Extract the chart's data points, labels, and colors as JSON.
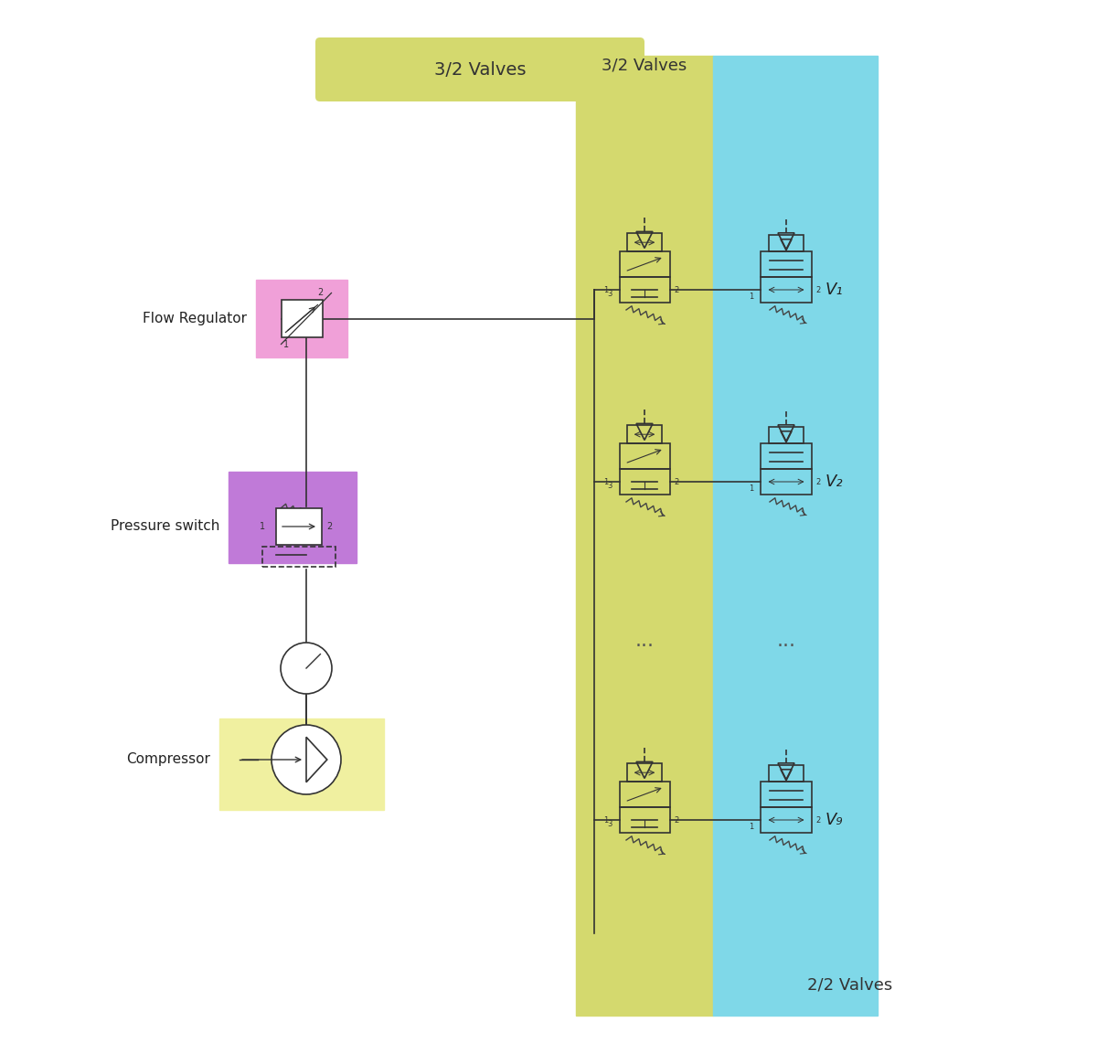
{
  "fig_width": 12.0,
  "fig_height": 11.41,
  "bg_color": "#ffffff",
  "yellow_band_color": "#d4d96e",
  "cyan_band_color": "#7fd8e8",
  "pink_color": "#f0a0d8",
  "purple_color": "#c07ad8",
  "light_yellow_color": "#f0f0a0",
  "title_32_valves": "3/2 Valves",
  "title_22_valves": "2/2 Valves",
  "label_flow_regulator": "Flow Regulator",
  "label_pressure_switch": "Pressure switch",
  "label_compressor": "Compressor",
  "valve_labels": [
    "V₁",
    "V₂",
    "V₉"
  ],
  "dots_label": "...",
  "line_color": "#333333",
  "spring_color": "#444444"
}
